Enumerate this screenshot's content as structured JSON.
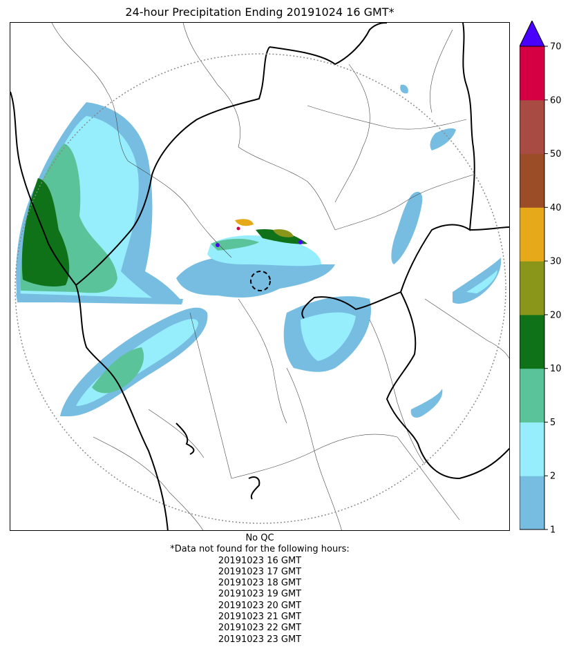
{
  "title": "24-hour Precipitation Ending 20191024 16 GMT*",
  "notes": {
    "qc": "No QC",
    "missing_header": "*Data not found for the following hours:",
    "missing_hours": [
      "20191023 16 GMT",
      "20191023 17 GMT",
      "20191023 18 GMT",
      "20191023 19 GMT",
      "20191023 20 GMT",
      "20191023 21 GMT",
      "20191023 22 GMT",
      "20191023 23 GMT"
    ]
  },
  "colorbar": {
    "ticks": [
      "1",
      "2",
      "5",
      "10",
      "20",
      "30",
      "40",
      "50",
      "60",
      "70"
    ],
    "colors": [
      "#77bde2",
      "#96eefd",
      "#5bc39a",
      "#0f7219",
      "#89961a",
      "#e6a91a",
      "#9b4d27",
      "#a74b43",
      "#d50043"
    ],
    "extend_color": "#4a00ff"
  },
  "palette": {
    "radar_range_ring": "#888888",
    "state_border": "#000000",
    "district_border": "#444444"
  }
}
